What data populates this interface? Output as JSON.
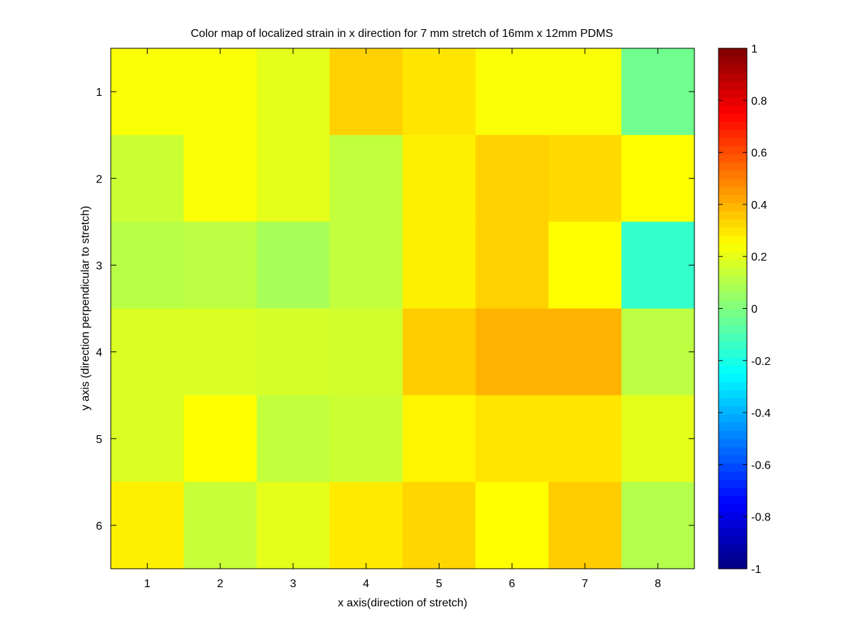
{
  "chart_data": {
    "type": "heatmap",
    "title": "Color map of localized strain in x direction for 7 mm stretch of 16mm x 12mm PDMS",
    "xlabel": "x axis(direction of stretch)",
    "ylabel": "y axis (direction perpendicular to stretch)",
    "x_ticks": [
      "1",
      "2",
      "3",
      "4",
      "5",
      "6",
      "7",
      "8"
    ],
    "y_ticks": [
      "1",
      "2",
      "3",
      "4",
      "5",
      "6"
    ],
    "colormap": "jet",
    "clim": [
      -1,
      1
    ],
    "colorbar_ticks": [
      "-1",
      "-0.8",
      "-0.6",
      "-0.4",
      "-0.2",
      "0",
      "0.2",
      "0.4",
      "0.6",
      "0.8",
      "1"
    ],
    "grid": false,
    "values": [
      [
        0.24,
        0.24,
        0.2,
        0.34,
        0.3,
        0.24,
        0.24,
        -0.03
      ],
      [
        0.15,
        0.24,
        0.2,
        0.13,
        0.28,
        0.34,
        0.32,
        0.25
      ],
      [
        0.11,
        0.12,
        0.08,
        0.13,
        0.28,
        0.34,
        0.25,
        -0.15
      ],
      [
        0.18,
        0.18,
        0.17,
        0.16,
        0.35,
        0.4,
        0.4,
        0.12
      ],
      [
        0.18,
        0.25,
        0.13,
        0.15,
        0.27,
        0.3,
        0.3,
        0.2
      ],
      [
        0.28,
        0.14,
        0.2,
        0.29,
        0.33,
        0.25,
        0.35,
        0.1
      ]
    ]
  }
}
